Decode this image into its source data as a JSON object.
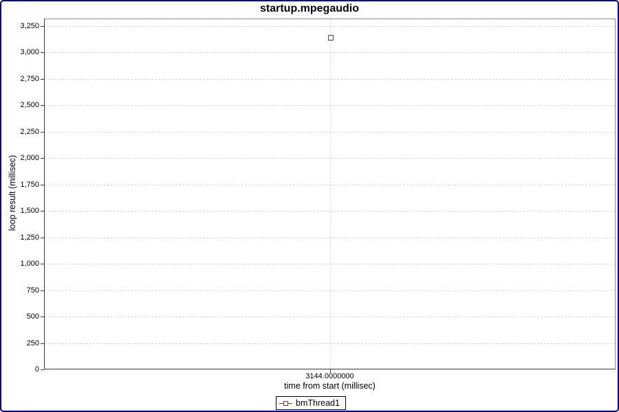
{
  "chart_data": {
    "type": "scatter",
    "title": "startup.mpegaudio",
    "xlabel": "time from start (millisec)",
    "ylabel": "loop result (millisec)",
    "xlim": [
      3143.5,
      3144.5
    ],
    "ylim": [
      0,
      3250
    ],
    "grid": true,
    "legend_position": "bottom",
    "y_ticks": [
      {
        "value": 0,
        "label": "0"
      },
      {
        "value": 250,
        "label": "250"
      },
      {
        "value": 500,
        "label": "500"
      },
      {
        "value": 750,
        "label": "750"
      },
      {
        "value": 1000,
        "label": "1,000"
      },
      {
        "value": 1250,
        "label": "1,250"
      },
      {
        "value": 1500,
        "label": "1,500"
      },
      {
        "value": 1750,
        "label": "1,750"
      },
      {
        "value": 2000,
        "label": "2,000"
      },
      {
        "value": 2250,
        "label": "2,250"
      },
      {
        "value": 2500,
        "label": "2,500"
      },
      {
        "value": 2750,
        "label": "2,750"
      },
      {
        "value": 3000,
        "label": "3,000"
      },
      {
        "value": 3250,
        "label": "3,250"
      }
    ],
    "x_ticks": [
      {
        "value": 3144,
        "label": "3144.0000000"
      }
    ],
    "series": [
      {
        "name": "bmThread1",
        "marker": "square",
        "points": [
          {
            "x": 3144,
            "y": 3144
          }
        ]
      }
    ],
    "legend": {
      "entries": [
        "bmThread1"
      ]
    }
  },
  "colors": {
    "canvas_border": "#000099",
    "plot_frame": "#8a8a8a",
    "axis_line": "#3a3a3a",
    "gridline": "#d9d9d9",
    "marker_stroke": "#5c4242",
    "marker_fill": "#eef7f0",
    "text": "#000000",
    "background": "#ffffff"
  }
}
